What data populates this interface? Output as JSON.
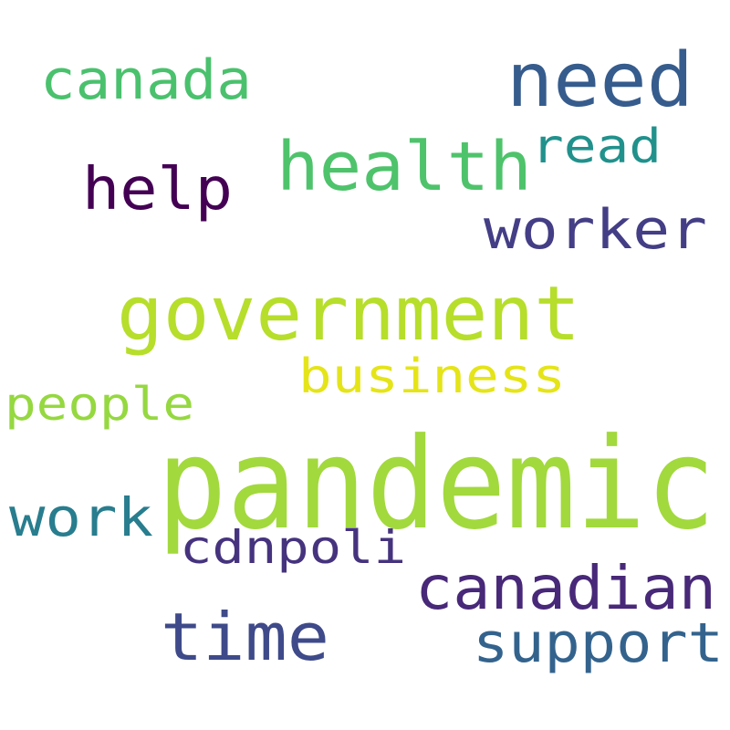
{
  "words": [
    {
      "text": "pandemic",
      "color": "#a2d93d"
    },
    {
      "text": "government",
      "color": "#b6de2b"
    },
    {
      "text": "need",
      "color": "#365c8d"
    },
    {
      "text": "health",
      "color": "#4ec36b"
    },
    {
      "text": "time",
      "color": "#3e4a89"
    },
    {
      "text": "canadian",
      "color": "#482878"
    },
    {
      "text": "help",
      "color": "#440154"
    },
    {
      "text": "worker",
      "color": "#433e85"
    },
    {
      "text": "canada",
      "color": "#4ac16d"
    },
    {
      "text": "support",
      "color": "#33638d"
    },
    {
      "text": "work",
      "color": "#287d8e"
    },
    {
      "text": "business",
      "color": "#e5e419"
    },
    {
      "text": "cdnpoli",
      "color": "#46337e"
    },
    {
      "text": "read",
      "color": "#21918c"
    },
    {
      "text": "people",
      "color": "#95d840"
    }
  ]
}
